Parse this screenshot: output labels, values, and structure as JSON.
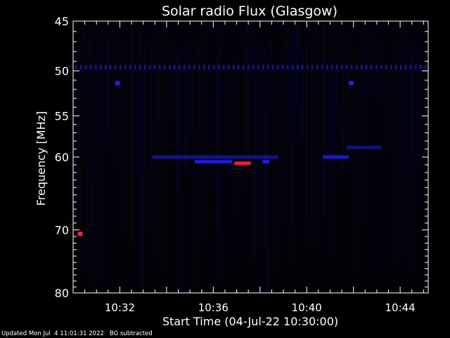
{
  "chart_data": {
    "type": "heatmap",
    "title": "Solar radio Flux (Glasgow)",
    "xlabel": "Start Time (04-Jul-22 10:30:00)",
    "ylabel": "Frequency [MHz]",
    "x_unit": "minutes after 10:30:00",
    "xlim": [
      0,
      15.2
    ],
    "ylim": [
      80,
      45
    ],
    "y_scale": "log",
    "x_ticks": [
      {
        "value": 2,
        "label": "10:32"
      },
      {
        "value": 6,
        "label": "10:36"
      },
      {
        "value": 10,
        "label": "10:40"
      },
      {
        "value": 14,
        "label": "10:44"
      }
    ],
    "y_ticks": [
      {
        "value": 45,
        "label": "45"
      },
      {
        "value": 50,
        "label": "50"
      },
      {
        "value": 55,
        "label": "55"
      },
      {
        "value": 60,
        "label": "60"
      },
      {
        "value": 70,
        "label": "70"
      },
      {
        "value": 80,
        "label": "80"
      }
    ],
    "features": [
      {
        "x": [
          0.0,
          15.2
        ],
        "y": 49.6,
        "intensity": 0.55,
        "kind": "dotted"
      },
      {
        "x": [
          3.4,
          8.8
        ],
        "y": 60.0,
        "intensity": 0.55,
        "kind": "band"
      },
      {
        "x": [
          5.2,
          6.8
        ],
        "y": 60.6,
        "intensity": 0.8,
        "kind": "band"
      },
      {
        "x": [
          6.9,
          7.6
        ],
        "y": 60.8,
        "intensity": 0.95,
        "kind": "band"
      },
      {
        "x": [
          8.1,
          8.4
        ],
        "y": 60.6,
        "intensity": 0.85,
        "kind": "band"
      },
      {
        "x": [
          10.7,
          11.8
        ],
        "y": 60.0,
        "intensity": 0.6,
        "kind": "band"
      },
      {
        "x": [
          11.7,
          13.2
        ],
        "y": 58.8,
        "intensity": 0.35,
        "kind": "band"
      },
      {
        "x": [
          1.8,
          2.0
        ],
        "y": 51.3,
        "intensity": 0.6,
        "kind": "spot"
      },
      {
        "x": [
          11.8,
          12.0
        ],
        "y": 51.3,
        "intensity": 0.6,
        "kind": "spot"
      },
      {
        "x": [
          0.2,
          0.4
        ],
        "y": 70.6,
        "intensity": 1.0,
        "kind": "spot"
      }
    ],
    "colors": {
      "low": "#000000",
      "mid": "#1a1ab4",
      "high": "#2020ff",
      "peak": "#ff2040",
      "axes": "#ffffff"
    }
  },
  "footer": {
    "updated": "Updated Mon Jul  4 11:01:31 2022",
    "note": "BG subtracted"
  }
}
